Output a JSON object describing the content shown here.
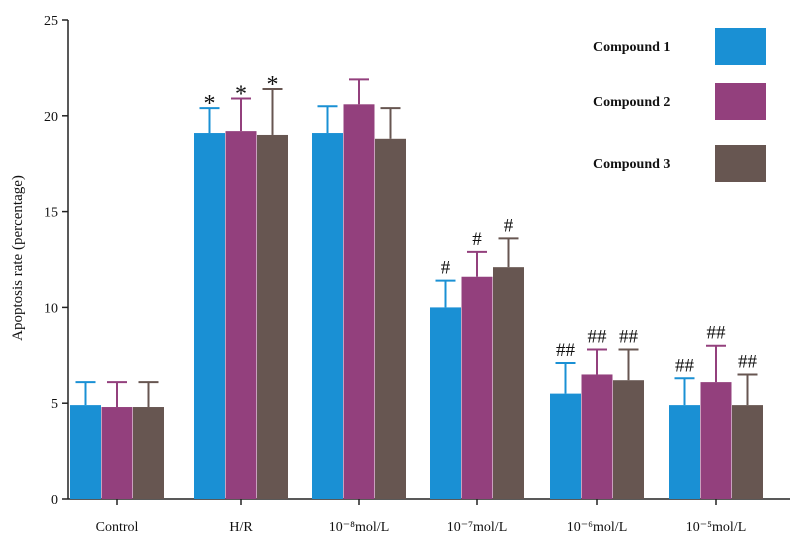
{
  "chart_data": {
    "type": "bar",
    "title": "",
    "xlabel": "",
    "ylabel": "Apoptosis rate (percentage)",
    "ylim": [
      0,
      25
    ],
    "yticks": [
      "0",
      "5",
      "10",
      "15",
      "20",
      "25"
    ],
    "categories": [
      "Control",
      "H/R",
      "10⁻⁸mol/L",
      "10⁻⁷mol/L",
      "10⁻⁶mol/L",
      "10⁻⁵mol/L"
    ],
    "legend_position": "top-right",
    "series": [
      {
        "name": "Compound 1",
        "color": "#1a90d4",
        "values": [
          4.9,
          19.1,
          19.1,
          10.0,
          5.5,
          4.9
        ],
        "errors": [
          1.2,
          1.3,
          1.4,
          1.4,
          1.6,
          1.4
        ],
        "annotations": [
          "",
          "*",
          "",
          "#",
          "##",
          "##"
        ]
      },
      {
        "name": "Compound 2",
        "color": "#93407d",
        "values": [
          4.8,
          19.2,
          20.6,
          11.6,
          6.5,
          6.1
        ],
        "errors": [
          1.3,
          1.7,
          1.3,
          1.3,
          1.3,
          1.9
        ],
        "annotations": [
          "",
          "*",
          "",
          "#",
          "##",
          "##"
        ]
      },
      {
        "name": "Compound 3",
        "color": "#675651",
        "values": [
          4.8,
          19.0,
          18.8,
          12.1,
          6.2,
          4.9
        ],
        "errors": [
          1.3,
          2.4,
          1.6,
          1.5,
          1.6,
          1.6
        ],
        "annotations": [
          "",
          "*",
          "",
          "#",
          "##",
          "##"
        ]
      }
    ]
  }
}
